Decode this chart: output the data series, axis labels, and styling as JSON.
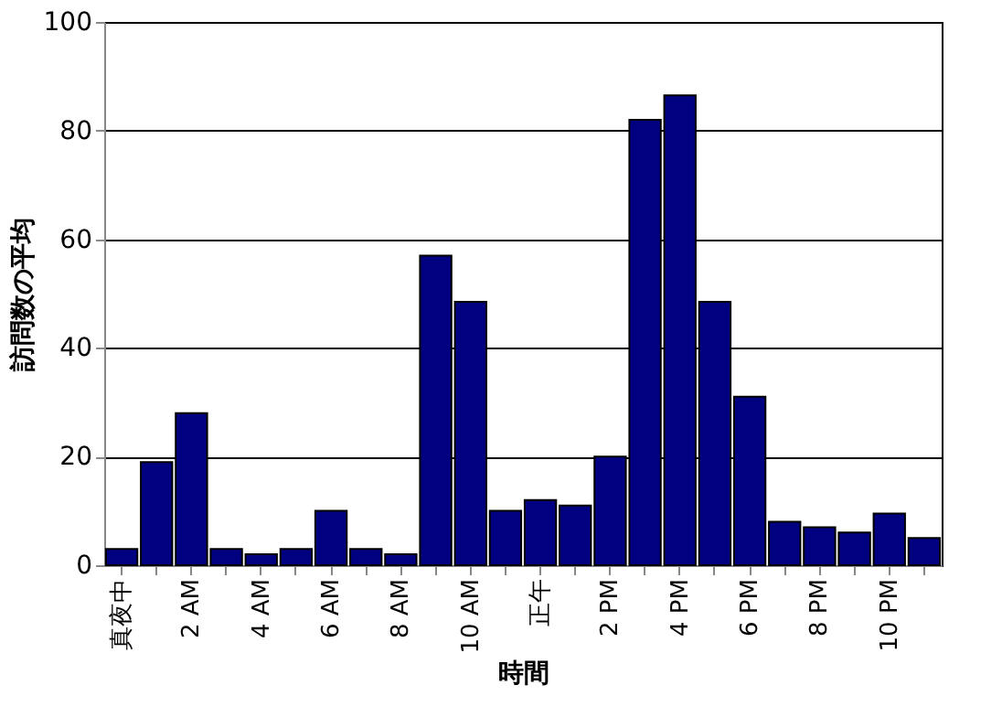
{
  "chart_data": {
    "type": "bar",
    "xlabel": "時間",
    "ylabel": "訪問数の平均",
    "categories": [
      "真夜中",
      null,
      "2 AM",
      null,
      "4 AM",
      null,
      "6 AM",
      null,
      "8 AM",
      null,
      "10 AM",
      null,
      "正午",
      null,
      "2 PM",
      null,
      "4 PM",
      null,
      "6 PM",
      null,
      "8 PM",
      null,
      "10 PM",
      null
    ],
    "values": [
      3,
      19,
      28,
      3,
      2,
      3,
      10,
      3,
      2,
      57,
      48.5,
      10,
      12,
      11,
      20,
      82,
      86.5,
      48.5,
      31,
      8,
      7,
      6,
      9.5,
      5
    ],
    "color": "#000080",
    "ylim": [
      0,
      100
    ],
    "yticks": [
      0,
      20,
      40,
      60,
      80,
      100
    ],
    "grid": "y"
  }
}
